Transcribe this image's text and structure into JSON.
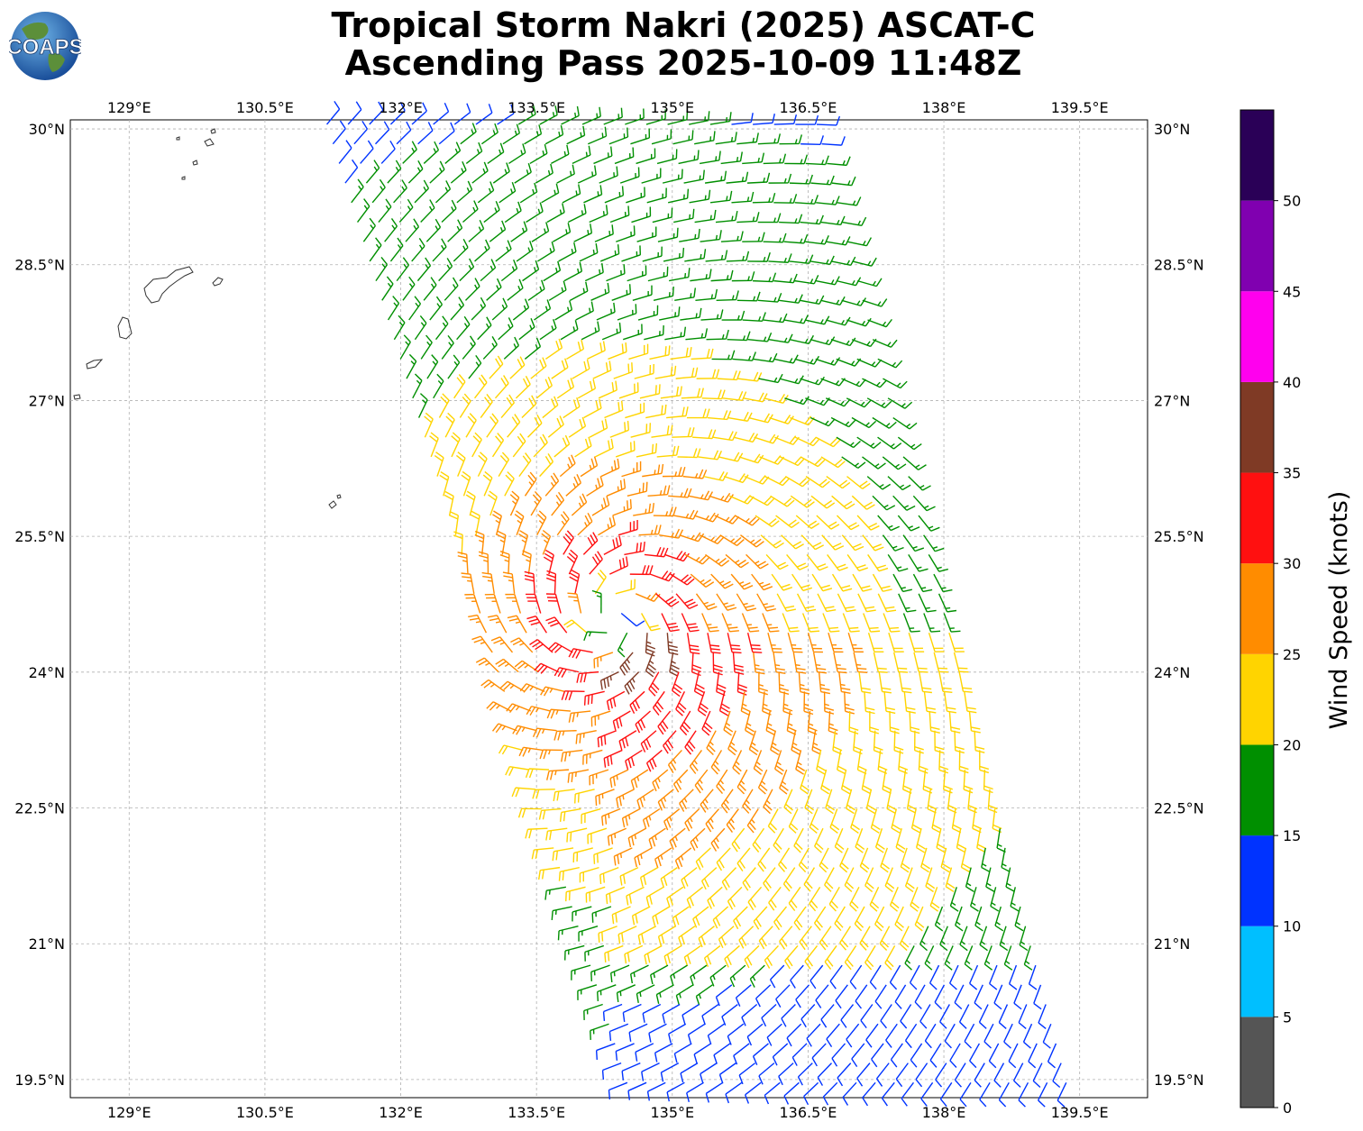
{
  "header": {
    "title_line1": "Tropical Storm Nakri (2025) ASCAT-C",
    "title_line2": "Ascending Pass 2025-10-09 11:48Z",
    "logo_text": "COAPS"
  },
  "map": {
    "lon_ticks": [
      "129°E",
      "130.5°E",
      "132°E",
      "133.5°E",
      "135°E",
      "136.5°E",
      "138°E",
      "139.5°E"
    ],
    "lat_ticks": [
      "30°N",
      "28.5°N",
      "27°N",
      "25.5°N",
      "24°N",
      "22.5°N",
      "21°N",
      "19.5°N"
    ],
    "lon_range": [
      128.35,
      140.25
    ],
    "lat_range": [
      19.3,
      30.1
    ],
    "gridlines": true,
    "storm_center": {
      "lon": 134.35,
      "lat": 24.6
    },
    "swath_edges": {
      "west_north": 131.05,
      "west_south": 134.45,
      "east_north": 136.7,
      "east_south": 139.5
    }
  },
  "colorbar": {
    "label": "Wind Speed (knots)",
    "ticks": [
      "0",
      "5",
      "10",
      "15",
      "20",
      "25",
      "30",
      "35",
      "40",
      "45",
      "50"
    ],
    "bins": [
      {
        "min": 0,
        "max": 5,
        "color": "#555555"
      },
      {
        "min": 5,
        "max": 10,
        "color": "#00bfff"
      },
      {
        "min": 10,
        "max": 15,
        "color": "#0033ff"
      },
      {
        "min": 15,
        "max": 20,
        "color": "#008f00"
      },
      {
        "min": 20,
        "max": 25,
        "color": "#ffd400"
      },
      {
        "min": 25,
        "max": 30,
        "color": "#ff8c00"
      },
      {
        "min": 30,
        "max": 35,
        "color": "#ff1010"
      },
      {
        "min": 35,
        "max": 40,
        "color": "#7f3a25"
      },
      {
        "min": 40,
        "max": 45,
        "color": "#ff00ee"
      },
      {
        "min": 45,
        "max": 50,
        "color": "#8000b0"
      },
      {
        "min": 50,
        "max": 55,
        "color": "#2a0057"
      }
    ]
  }
}
